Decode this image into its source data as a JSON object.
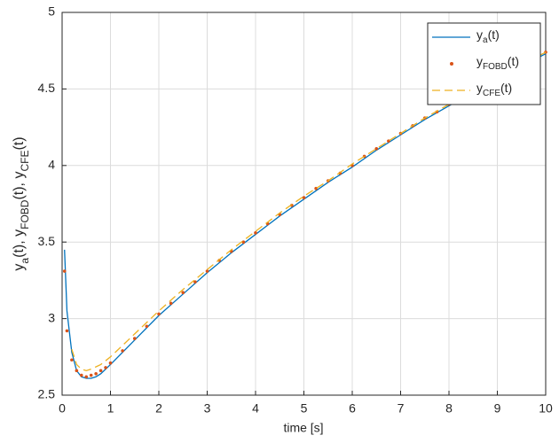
{
  "chart_data": {
    "type": "line",
    "x_label": "time [s]",
    "y_label": [
      "y",
      "a",
      "(t), y",
      "FOBD",
      "(t), y",
      "CFE",
      "(t)"
    ],
    "xlim": [
      0,
      10
    ],
    "ylim": [
      2.5,
      5
    ],
    "xticks": [
      0,
      1,
      2,
      3,
      4,
      5,
      6,
      7,
      8,
      9,
      10
    ],
    "yticks": [
      2.5,
      3,
      3.5,
      4,
      4.5,
      5
    ],
    "grid": true,
    "legend": "northeast",
    "series": [
      {
        "name": [
          "y",
          "a",
          "(t)"
        ],
        "color": "#0072bd",
        "style": "solid",
        "x": [
          0.05,
          0.1,
          0.2,
          0.3,
          0.4,
          0.5,
          0.6,
          0.7,
          0.8,
          1,
          1.5,
          2,
          2.5,
          3,
          3.5,
          4,
          4.5,
          5,
          5.5,
          6,
          6.5,
          7,
          7.5,
          8,
          8.5,
          9,
          9.5,
          10
        ],
        "values": [
          3.45,
          3.05,
          2.78,
          2.66,
          2.62,
          2.61,
          2.61,
          2.62,
          2.64,
          2.7,
          2.86,
          3.02,
          3.16,
          3.3,
          3.43,
          3.55,
          3.67,
          3.78,
          3.89,
          3.99,
          4.1,
          4.2,
          4.3,
          4.39,
          4.48,
          4.57,
          4.65,
          4.73
        ]
      },
      {
        "name": [
          "y",
          "FOBD",
          "(t)"
        ],
        "color": "#d95319",
        "style": "dots",
        "x": [
          0.05,
          0.1,
          0.2,
          0.3,
          0.4,
          0.5,
          0.6,
          0.7,
          0.8,
          0.9,
          1,
          1.25,
          1.5,
          1.75,
          2,
          2.25,
          2.5,
          2.75,
          3,
          3.25,
          3.5,
          3.75,
          4,
          4.25,
          4.5,
          4.75,
          5,
          5.25,
          5.5,
          5.75,
          6,
          6.25,
          6.5,
          6.75,
          7,
          7.25,
          7.5,
          7.75,
          8,
          8.25,
          8.5,
          8.75,
          9,
          9.25,
          9.5,
          9.75,
          10
        ],
        "values": [
          3.31,
          2.92,
          2.73,
          2.66,
          2.63,
          2.62,
          2.63,
          2.64,
          2.66,
          2.68,
          2.71,
          2.79,
          2.87,
          2.95,
          3.03,
          3.1,
          3.17,
          3.24,
          3.31,
          3.38,
          3.44,
          3.5,
          3.56,
          3.62,
          3.68,
          3.74,
          3.79,
          3.85,
          3.9,
          3.95,
          4.0,
          4.06,
          4.11,
          4.16,
          4.21,
          4.26,
          4.31,
          4.35,
          4.4,
          4.45,
          4.49,
          4.54,
          4.58,
          4.62,
          4.66,
          4.7,
          4.74
        ]
      },
      {
        "name": [
          "y",
          "CFE",
          "(t)"
        ],
        "color": "#edb120",
        "style": "dashed",
        "x": [
          0.2,
          0.3,
          0.4,
          0.5,
          0.6,
          0.8,
          1,
          1.5,
          2,
          2.5,
          3,
          3.5,
          4,
          4.5,
          5,
          5.5,
          6,
          6.5,
          7,
          7.5,
          8,
          8.5,
          9,
          9.5,
          10
        ],
        "values": [
          2.8,
          2.7,
          2.67,
          2.66,
          2.67,
          2.7,
          2.75,
          2.9,
          3.05,
          3.19,
          3.32,
          3.45,
          3.57,
          3.69,
          3.8,
          3.9,
          4.01,
          4.11,
          4.21,
          4.31,
          4.4,
          4.49,
          4.58,
          4.66,
          4.74
        ]
      }
    ]
  }
}
